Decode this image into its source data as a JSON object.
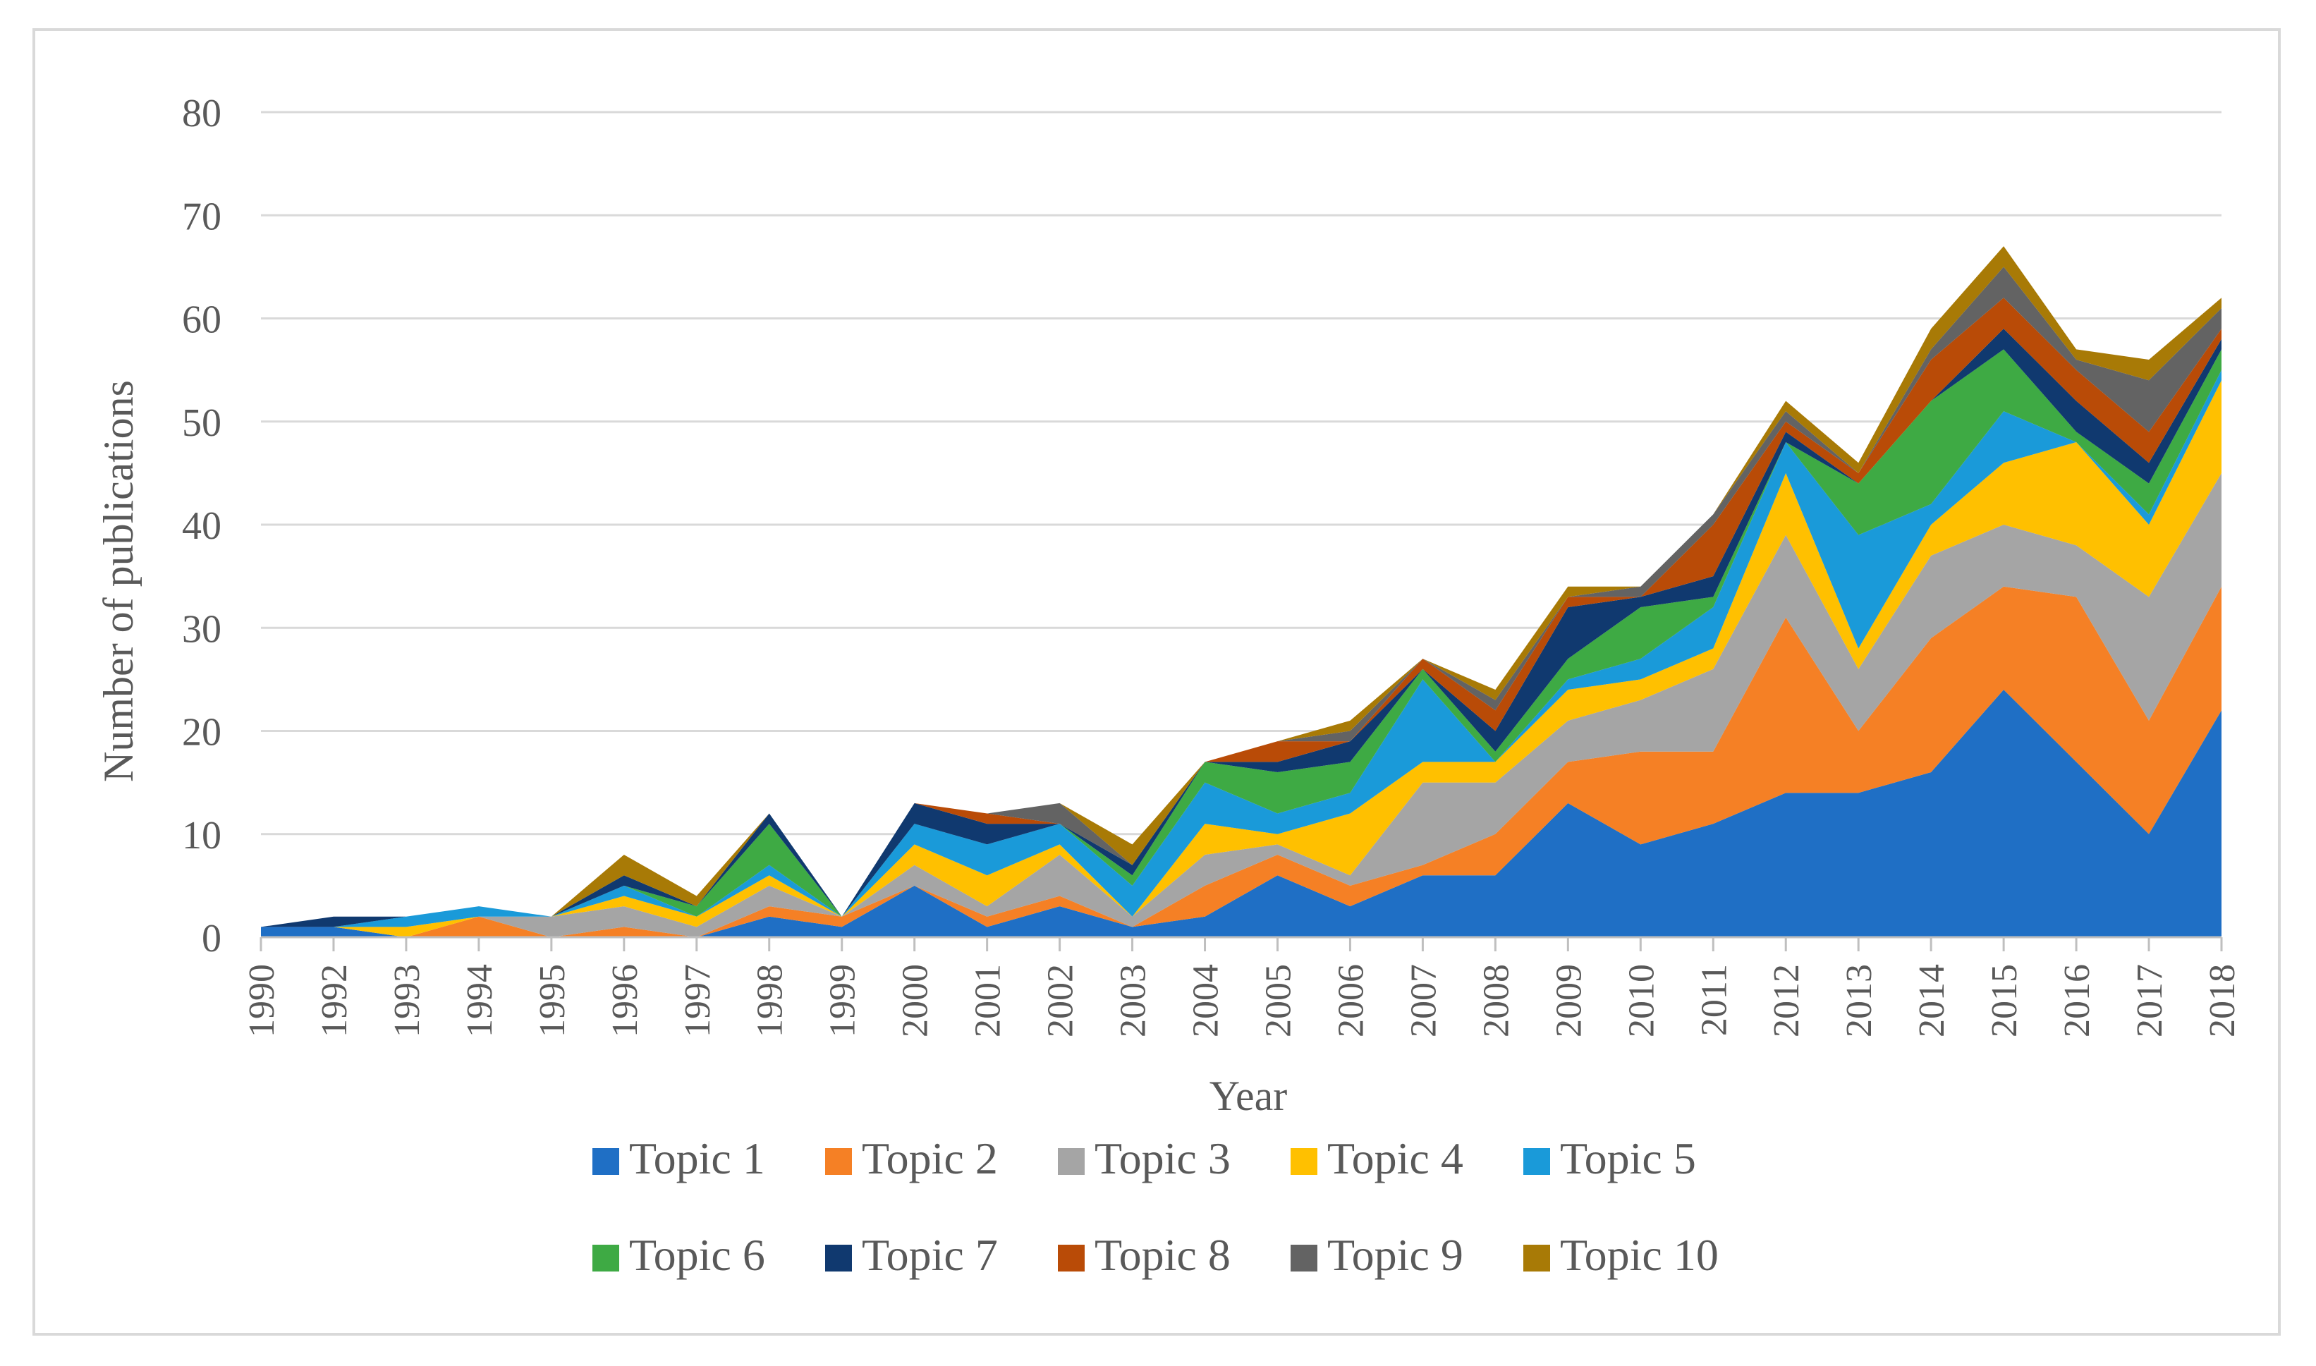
{
  "chart_data": {
    "type": "area",
    "stacked": true,
    "title": "",
    "xlabel": "Year",
    "ylabel": "Number of publications",
    "ylim": [
      0,
      80
    ],
    "yticks": [
      0,
      10,
      20,
      30,
      40,
      50,
      60,
      70,
      80
    ],
    "grid": true,
    "legend_position": "bottom",
    "categories": [
      "1990",
      "1992",
      "1993",
      "1994",
      "1995",
      "1996",
      "1997",
      "1998",
      "1999",
      "2000",
      "2001",
      "2002",
      "2003",
      "2004",
      "2005",
      "2006",
      "2007",
      "2008",
      "2009",
      "2010",
      "2011",
      "2012",
      "2013",
      "2014",
      "2015",
      "2016",
      "2017",
      "2018"
    ],
    "series": [
      {
        "name": "Topic 1",
        "color": "#1f6fc5",
        "values": [
          1,
          1,
          0,
          0,
          0,
          0,
          0,
          2,
          1,
          5,
          1,
          3,
          1,
          2,
          6,
          3,
          6,
          6,
          13,
          9,
          11,
          14,
          14,
          16,
          24,
          17,
          10,
          22
        ]
      },
      {
        "name": "Topic 2",
        "color": "#f58025",
        "values": [
          0,
          0,
          0,
          2,
          0,
          1,
          0,
          1,
          1,
          0,
          1,
          1,
          0,
          3,
          2,
          2,
          1,
          4,
          4,
          9,
          7,
          17,
          6,
          13,
          10,
          16,
          11,
          12
        ]
      },
      {
        "name": "Topic 3",
        "color": "#a5a5a5",
        "values": [
          0,
          0,
          0,
          0,
          2,
          2,
          1,
          2,
          0,
          2,
          1,
          4,
          1,
          3,
          1,
          1,
          8,
          5,
          4,
          5,
          8,
          8,
          6,
          8,
          6,
          5,
          12,
          11
        ]
      },
      {
        "name": "Topic 4",
        "color": "#ffc000",
        "values": [
          0,
          0,
          1,
          0,
          0,
          1,
          1,
          1,
          0,
          2,
          3,
          1,
          0,
          3,
          1,
          6,
          2,
          2,
          3,
          2,
          2,
          6,
          2,
          3,
          6,
          10,
          7,
          9
        ]
      },
      {
        "name": "Topic 5",
        "color": "#1a9ad9",
        "values": [
          0,
          0,
          1,
          1,
          0,
          1,
          0,
          1,
          0,
          2,
          3,
          2,
          3,
          4,
          2,
          2,
          8,
          0,
          1,
          2,
          4,
          3,
          11,
          2,
          5,
          0,
          1,
          1
        ]
      },
      {
        "name": "Topic 6",
        "color": "#3eaa44",
        "values": [
          0,
          0,
          0,
          0,
          0,
          0,
          1,
          4,
          0,
          0,
          0,
          0,
          1,
          2,
          4,
          3,
          1,
          1,
          2,
          5,
          1,
          0,
          5,
          10,
          6,
          1,
          3,
          2
        ]
      },
      {
        "name": "Topic 7",
        "color": "#10396f",
        "values": [
          0,
          1,
          0,
          0,
          0,
          1,
          0,
          1,
          0,
          2,
          2,
          0,
          1,
          0,
          1,
          2,
          0,
          2,
          5,
          1,
          2,
          1,
          0,
          0,
          2,
          3,
          2,
          1
        ]
      },
      {
        "name": "Topic 8",
        "color": "#b94b07",
        "values": [
          0,
          0,
          0,
          0,
          0,
          0,
          0,
          0,
          0,
          0,
          1,
          0,
          0,
          0,
          2,
          0,
          1,
          2,
          1,
          0,
          5,
          1,
          1,
          4,
          3,
          3,
          3,
          1
        ]
      },
      {
        "name": "Topic 9",
        "color": "#636363",
        "values": [
          0,
          0,
          0,
          0,
          0,
          0,
          0,
          0,
          0,
          0,
          0,
          2,
          0,
          0,
          0,
          1,
          0,
          1,
          0,
          1,
          1,
          1,
          0,
          1,
          3,
          1,
          5,
          2
        ]
      },
      {
        "name": "Topic 10",
        "color": "#a87a06",
        "values": [
          0,
          0,
          0,
          0,
          0,
          2,
          1,
          0,
          0,
          0,
          0,
          0,
          2,
          0,
          0,
          1,
          0,
          1,
          1,
          0,
          0,
          1,
          1,
          2,
          2,
          1,
          2,
          1
        ]
      }
    ]
  }
}
